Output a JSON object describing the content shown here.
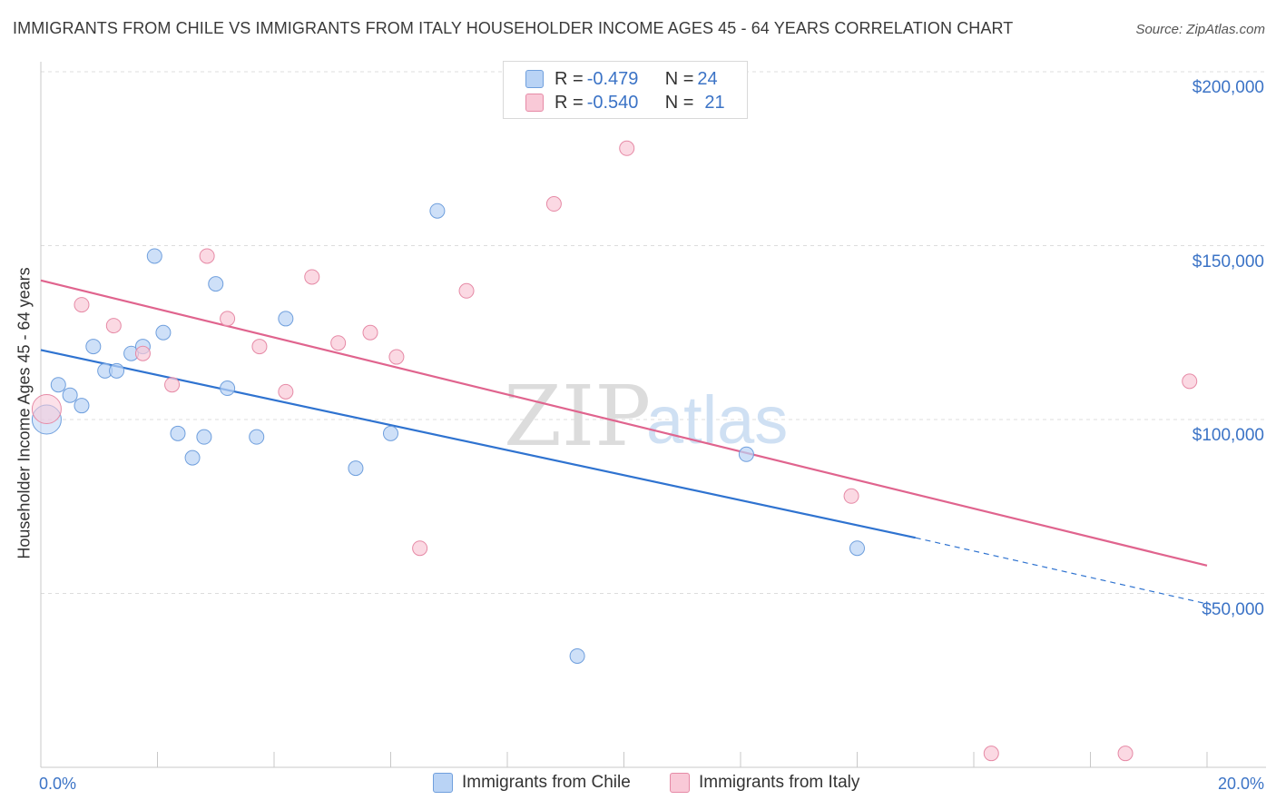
{
  "title": "IMMIGRANTS FROM CHILE VS IMMIGRANTS FROM ITALY HOUSEHOLDER INCOME AGES 45 - 64 YEARS CORRELATION CHART",
  "source": "Source: ZipAtlas.com",
  "watermark": {
    "zip": "ZIP",
    "atlas": "atlas"
  },
  "legend": {
    "chile": {
      "r_label": "R = ",
      "r_value": "-0.479",
      "n_label": "N = ",
      "n_value": "24"
    },
    "italy": {
      "r_label": "R = ",
      "r_value": "-0.540",
      "n_label": "N = ",
      "n_value": "21"
    }
  },
  "bottom_legend": {
    "chile": "Immigrants from Chile",
    "italy": "Immigrants from Italy"
  },
  "chart_data": {
    "type": "scatter",
    "xlabel": "",
    "ylabel": "Householder Income Ages 45 - 64 years",
    "xlim": [
      0,
      20
    ],
    "ylim": [
      0,
      200000
    ],
    "x_tick_labels": {
      "left": "0.0%",
      "right": "20.0%"
    },
    "y_ticks": [
      {
        "value": 200000,
        "label": "$200,000"
      },
      {
        "value": 150000,
        "label": "$150,000"
      },
      {
        "value": 100000,
        "label": "$100,000"
      },
      {
        "value": 50000,
        "label": "$50,000"
      }
    ],
    "series": [
      {
        "name": "Immigrants from Chile",
        "color": "#6f9fdd",
        "fill": "#b9d3f5",
        "line_color": "#2f73d0",
        "trend": {
          "x0": 0,
          "y0": 120000,
          "x1": 15.0,
          "y1": 66000,
          "dash_to_x": 20,
          "dash_to_y": 47000
        },
        "points": [
          {
            "x": 0.1,
            "y": 100000,
            "big": true
          },
          {
            "x": 0.3,
            "y": 110000
          },
          {
            "x": 0.5,
            "y": 107000
          },
          {
            "x": 0.7,
            "y": 104000
          },
          {
            "x": 0.9,
            "y": 121000
          },
          {
            "x": 1.1,
            "y": 114000
          },
          {
            "x": 1.3,
            "y": 114000
          },
          {
            "x": 1.55,
            "y": 119000
          },
          {
            "x": 1.75,
            "y": 121000
          },
          {
            "x": 1.95,
            "y": 147000
          },
          {
            "x": 2.1,
            "y": 125000
          },
          {
            "x": 2.35,
            "y": 96000
          },
          {
            "x": 2.6,
            "y": 89000
          },
          {
            "x": 2.8,
            "y": 95000
          },
          {
            "x": 3.0,
            "y": 139000
          },
          {
            "x": 3.2,
            "y": 109000
          },
          {
            "x": 3.7,
            "y": 95000
          },
          {
            "x": 4.2,
            "y": 129000
          },
          {
            "x": 5.4,
            "y": 86000
          },
          {
            "x": 6.0,
            "y": 96000
          },
          {
            "x": 6.8,
            "y": 160000
          },
          {
            "x": 9.2,
            "y": 32000
          },
          {
            "x": 12.1,
            "y": 90000
          },
          {
            "x": 14.0,
            "y": 63000
          }
        ]
      },
      {
        "name": "Immigrants from Italy",
        "color": "#e68aa6",
        "fill": "#f9c9d7",
        "line_color": "#e0648e",
        "trend": {
          "x0": 0,
          "y0": 140000,
          "x1": 20,
          "y1": 58000
        },
        "points": [
          {
            "x": 0.1,
            "y": 103000,
            "big": true
          },
          {
            "x": 0.7,
            "y": 133000
          },
          {
            "x": 1.25,
            "y": 127000
          },
          {
            "x": 1.75,
            "y": 119000
          },
          {
            "x": 2.25,
            "y": 110000
          },
          {
            "x": 2.85,
            "y": 147000
          },
          {
            "x": 3.2,
            "y": 129000
          },
          {
            "x": 3.75,
            "y": 121000
          },
          {
            "x": 4.2,
            "y": 108000
          },
          {
            "x": 4.65,
            "y": 141000
          },
          {
            "x": 5.1,
            "y": 122000
          },
          {
            "x": 5.65,
            "y": 125000
          },
          {
            "x": 6.1,
            "y": 118000
          },
          {
            "x": 6.5,
            "y": 63000
          },
          {
            "x": 7.3,
            "y": 137000
          },
          {
            "x": 8.8,
            "y": 162000
          },
          {
            "x": 10.05,
            "y": 178000
          },
          {
            "x": 13.9,
            "y": 78000
          },
          {
            "x": 16.3,
            "y": 4000
          },
          {
            "x": 18.6,
            "y": 4000
          },
          {
            "x": 19.7,
            "y": 111000
          }
        ]
      }
    ]
  }
}
